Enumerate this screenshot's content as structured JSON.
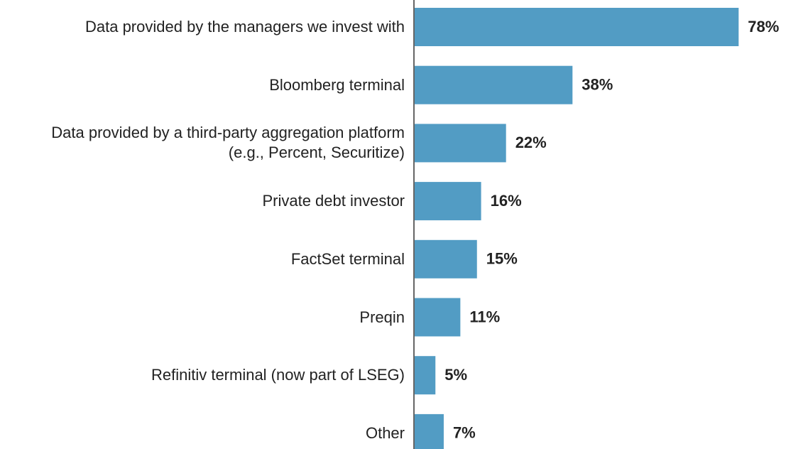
{
  "chart_data": {
    "type": "bar",
    "orientation": "horizontal",
    "categories": [
      "Data provided by the managers we invest with",
      "Bloomberg terminal",
      "Data provided by a third-party aggregation platform (e.g., Percent, Securitize)",
      "Private debt investor",
      "FactSet terminal",
      "Preqin",
      "Refinitiv terminal (now part of LSEG)",
      "Other"
    ],
    "values": [
      78,
      38,
      22,
      16,
      15,
      11,
      5,
      7
    ],
    "value_labels": [
      "78%",
      "38%",
      "22%",
      "16%",
      "15%",
      "11%",
      "5%",
      "7%"
    ],
    "color": "#529cc4"
  }
}
